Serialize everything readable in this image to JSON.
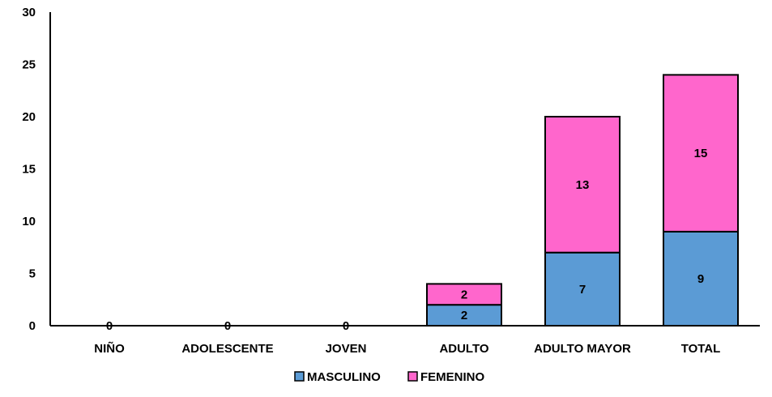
{
  "chart_data": {
    "type": "bar",
    "stacked": true,
    "categories": [
      "NIÑO",
      "ADOLESCENTE",
      "JOVEN",
      "ADULTO",
      "ADULTO MAYOR",
      "TOTAL"
    ],
    "series": [
      {
        "name": "MASCULINO",
        "color": "#5b9bd5",
        "values": [
          0,
          0,
          0,
          2,
          7,
          9
        ]
      },
      {
        "name": "FEMENINO",
        "color": "#ff66cc",
        "values": [
          0,
          0,
          0,
          2,
          13,
          15
        ]
      }
    ],
    "ylim": [
      0,
      30
    ],
    "yticks": [
      "0",
      "5",
      "10",
      "15",
      "20",
      "25",
      "30"
    ],
    "zero_labels": [
      "0",
      "0",
      "0"
    ],
    "legend_position": "bottom",
    "grid": false
  }
}
